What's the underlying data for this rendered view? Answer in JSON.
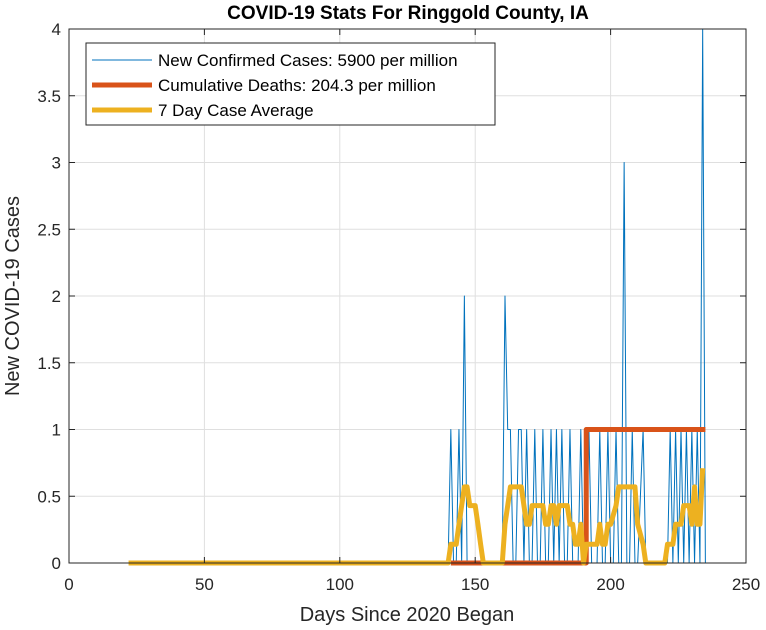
{
  "chart_data": {
    "type": "line",
    "title": "COVID-19 Stats For Ringgold County, IA",
    "xlabel": "Days Since 2020 Began",
    "ylabel": "New COVID-19 Cases",
    "xlim": [
      0,
      250
    ],
    "ylim": [
      0,
      4
    ],
    "xticks": [
      0,
      50,
      100,
      150,
      200,
      250
    ],
    "yticks": [
      0,
      0.5,
      1,
      1.5,
      2,
      2.5,
      3,
      3.5,
      4
    ],
    "xtick_labels": [
      "0",
      "50",
      "100",
      "150",
      "200",
      "250"
    ],
    "ytick_labels": [
      "0",
      "0.5",
      "1",
      "1.5",
      "2",
      "2.5",
      "3",
      "3.5",
      "4"
    ],
    "grid": true,
    "legend_position": "top-left",
    "series": [
      {
        "name": "New Confirmed Cases: 5900 per million",
        "color": "#0072BD",
        "style": "thin",
        "points": [
          [
            22,
            0
          ],
          [
            140,
            0
          ],
          [
            141,
            1
          ],
          [
            142,
            0
          ],
          [
            143,
            0
          ],
          [
            144,
            1
          ],
          [
            145,
            0
          ],
          [
            146,
            2
          ],
          [
            147,
            0
          ],
          [
            148,
            0
          ],
          [
            152,
            0
          ],
          [
            153,
            0
          ],
          [
            160,
            0
          ],
          [
            161,
            2
          ],
          [
            162,
            1
          ],
          [
            163,
            1
          ],
          [
            164,
            0
          ],
          [
            165,
            0
          ],
          [
            166,
            1
          ],
          [
            167,
            1
          ],
          [
            168,
            0
          ],
          [
            169,
            1
          ],
          [
            170,
            0
          ],
          [
            171,
            0
          ],
          [
            172,
            1
          ],
          [
            173,
            0
          ],
          [
            174,
            0
          ],
          [
            175,
            1
          ],
          [
            176,
            0
          ],
          [
            177,
            0
          ],
          [
            178,
            1
          ],
          [
            179,
            0
          ],
          [
            180,
            1
          ],
          [
            181,
            0
          ],
          [
            182,
            1
          ],
          [
            183,
            0
          ],
          [
            184,
            0
          ],
          [
            185,
            1
          ],
          [
            186,
            0
          ],
          [
            187,
            0
          ],
          [
            188,
            0
          ],
          [
            189,
            1
          ],
          [
            190,
            0
          ],
          [
            191,
            0
          ],
          [
            192,
            1
          ],
          [
            193,
            0
          ],
          [
            194,
            0
          ],
          [
            195,
            0
          ],
          [
            196,
            1
          ],
          [
            197,
            0
          ],
          [
            198,
            0
          ],
          [
            199,
            1
          ],
          [
            200,
            0
          ],
          [
            201,
            0
          ],
          [
            202,
            1
          ],
          [
            203,
            0
          ],
          [
            204,
            0
          ],
          [
            205,
            3
          ],
          [
            206,
            0
          ],
          [
            207,
            0
          ],
          [
            208,
            1
          ],
          [
            209,
            0
          ],
          [
            210,
            0
          ],
          [
            212,
            1
          ],
          [
            213,
            0
          ],
          [
            214,
            0
          ],
          [
            220,
            0
          ],
          [
            221,
            0
          ],
          [
            222,
            1
          ],
          [
            223,
            0
          ],
          [
            224,
            1
          ],
          [
            225,
            0
          ],
          [
            226,
            1
          ],
          [
            227,
            0
          ],
          [
            228,
            1
          ],
          [
            229,
            0
          ],
          [
            230,
            1
          ],
          [
            231,
            0
          ],
          [
            232,
            1
          ],
          [
            233,
            0
          ],
          [
            234,
            4
          ],
          [
            235,
            0
          ]
        ]
      },
      {
        "name": "Cumulative Deaths: 204.3 per million",
        "color": "#D95319",
        "style": "thick",
        "points": [
          [
            141,
            0
          ],
          [
            191,
            0
          ],
          [
            191,
            1
          ],
          [
            235,
            1
          ]
        ]
      },
      {
        "name": "7 Day Case Average",
        "color": "#EDB120",
        "style": "thick",
        "points": [
          [
            22,
            0
          ],
          [
            140,
            0
          ],
          [
            141,
            0.14
          ],
          [
            143,
            0.14
          ],
          [
            144,
            0.29
          ],
          [
            145,
            0.43
          ],
          [
            146,
            0.57
          ],
          [
            147,
            0.57
          ],
          [
            148,
            0.43
          ],
          [
            149,
            0.43
          ],
          [
            150,
            0.43
          ],
          [
            151,
            0.29
          ],
          [
            152,
            0.14
          ],
          [
            153,
            0
          ],
          [
            160,
            0
          ],
          [
            161,
            0.29
          ],
          [
            162,
            0.43
          ],
          [
            163,
            0.57
          ],
          [
            167,
            0.57
          ],
          [
            168,
            0.43
          ],
          [
            169,
            0.29
          ],
          [
            170,
            0.29
          ],
          [
            171,
            0.43
          ],
          [
            175,
            0.43
          ],
          [
            176,
            0.29
          ],
          [
            177,
            0.29
          ],
          [
            178,
            0.43
          ],
          [
            179,
            0.43
          ],
          [
            180,
            0.29
          ],
          [
            181,
            0.43
          ],
          [
            184,
            0.43
          ],
          [
            185,
            0.29
          ],
          [
            186,
            0.29
          ],
          [
            187,
            0.14
          ],
          [
            188,
            0.14
          ],
          [
            189,
            0.29
          ],
          [
            190,
            0
          ],
          [
            191,
            0.14
          ],
          [
            195,
            0.14
          ],
          [
            196,
            0.29
          ],
          [
            197,
            0.14
          ],
          [
            198,
            0.14
          ],
          [
            199,
            0.29
          ],
          [
            200,
            0.29
          ],
          [
            202,
            0.43
          ],
          [
            203,
            0.57
          ],
          [
            209,
            0.57
          ],
          [
            210,
            0.29
          ],
          [
            212,
            0.14
          ],
          [
            213,
            0
          ],
          [
            220,
            0
          ],
          [
            221,
            0.14
          ],
          [
            223,
            0.14
          ],
          [
            224,
            0.29
          ],
          [
            226,
            0.29
          ],
          [
            227,
            0.43
          ],
          [
            229,
            0.43
          ],
          [
            230,
            0.29
          ],
          [
            231,
            0.57
          ],
          [
            232,
            0.29
          ],
          [
            233,
            0.29
          ],
          [
            234,
            0.71
          ]
        ]
      }
    ]
  }
}
